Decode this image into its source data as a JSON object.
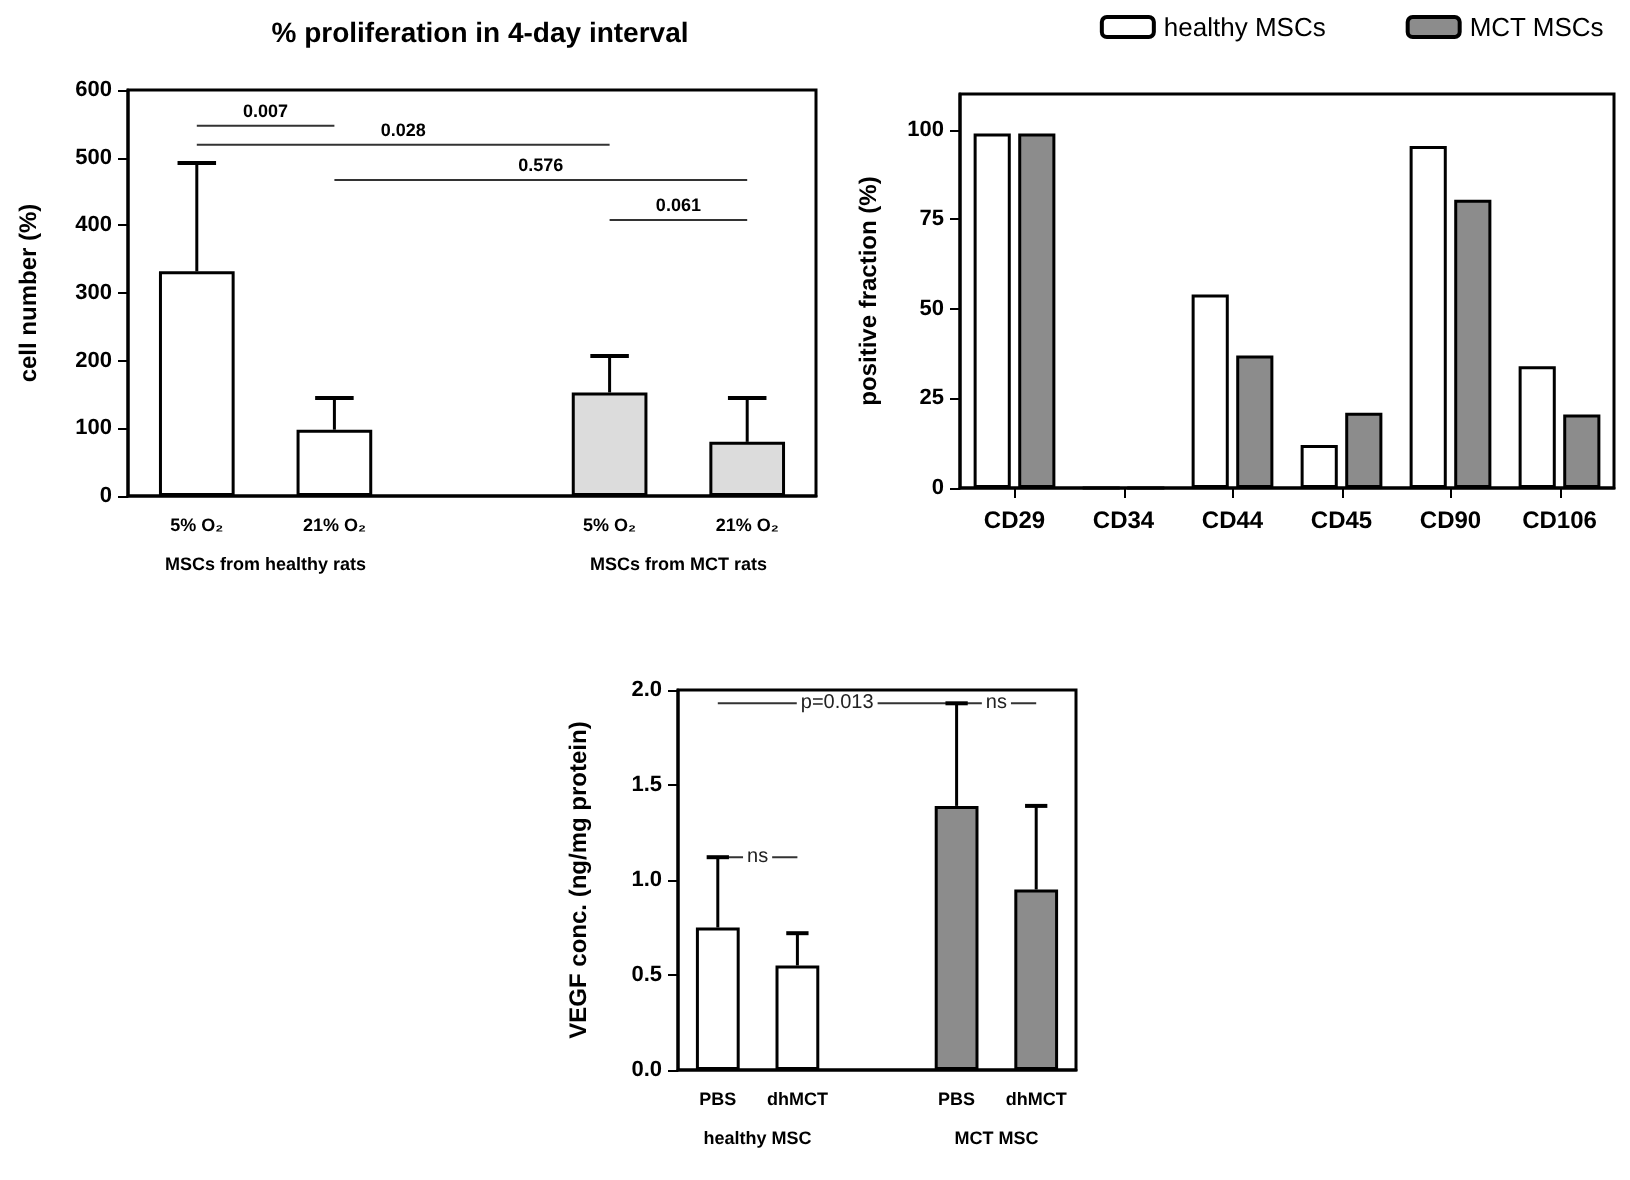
{
  "chart_data": [
    {
      "type": "bar",
      "title": "% proliferation in 4-day interval",
      "ylabel": "cell number (%)",
      "categories": [
        "5% O₂",
        "21% O₂",
        null,
        "5% O₂",
        "21% O₂"
      ],
      "values": [
        332,
        98,
        null,
        153,
        80
      ],
      "colors": [
        "#ffffff",
        "#ffffff",
        "#ffffff",
        "#dcdcdc",
        "#dcdcdc"
      ],
      "errors": [
        [
          332,
          492
        ],
        [
          98,
          145
        ],
        null,
        [
          153,
          207
        ],
        [
          80,
          145
        ]
      ],
      "ylim": [
        0,
        600
      ],
      "yticks": [
        0,
        100,
        200,
        300,
        400,
        500,
        600
      ],
      "grid": false,
      "legend": false,
      "annotations": [
        "0.007",
        "0.028",
        "0.576",
        "0.061",
        "MSCs from healthy rats",
        "MSCs from MCT rats"
      ]
    },
    {
      "type": "bar",
      "ylabel": "positive fraction (%)",
      "categories": [
        "CD29",
        "CD34",
        "CD44",
        "CD45",
        "CD90",
        "CD106"
      ],
      "series": [
        {
          "name": "healthy MSCs",
          "color": "#ffffff",
          "values": [
            99,
            0,
            54,
            12,
            95.5,
            34
          ]
        },
        {
          "name": "MCT MSCs",
          "color": "#8c8c8c",
          "values": [
            99,
            0,
            37,
            21,
            80.5,
            20.5
          ]
        }
      ],
      "ylim": [
        0,
        110
      ],
      "yticks": [
        0,
        25,
        50,
        75,
        100
      ],
      "grid": false,
      "legend": "top"
    },
    {
      "type": "bar",
      "ylabel": "VEGF conc. (ng/mg protein)",
      "categories": [
        "PBS",
        "dhMCT",
        null,
        "PBS",
        "dhMCT"
      ],
      "values": [
        0.75,
        0.55,
        null,
        1.39,
        0.95
      ],
      "colors": [
        "#ffffff",
        "#ffffff",
        "#ffffff",
        "#8c8c8c",
        "#8c8c8c"
      ],
      "errors": [
        [
          0.75,
          1.12
        ],
        [
          0.55,
          0.72
        ],
        null,
        [
          1.39,
          1.93
        ],
        [
          0.95,
          1.39
        ]
      ],
      "ylim": [
        0,
        2
      ],
      "yticks": [
        {
          "value": 0,
          "label": "0.0"
        },
        0.5,
        {
          "value": 1,
          "label": "1.0"
        },
        1.5,
        {
          "value": 2,
          "label": "2.0"
        }
      ],
      "grid": false,
      "legend": false,
      "annotations": [
        "p=0.013",
        "ns",
        "ns",
        "healthy MSC",
        "MCT MSC"
      ]
    }
  ]
}
